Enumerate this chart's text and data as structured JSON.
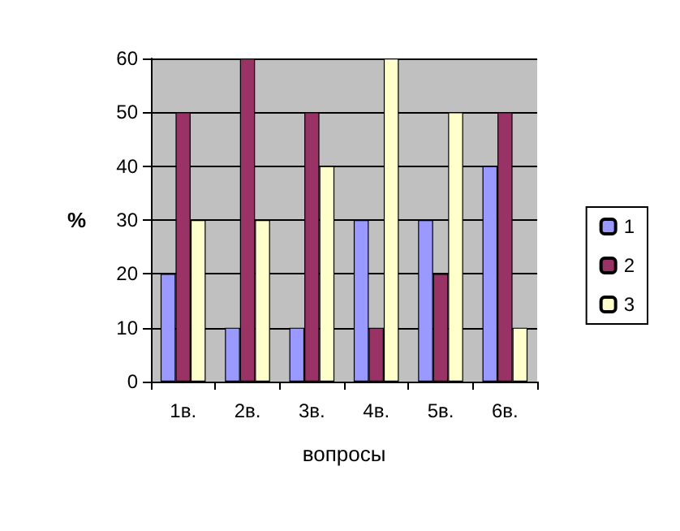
{
  "chart_data": {
    "type": "bar",
    "xlabel": "вопросы",
    "ylabel": "%",
    "categories": [
      "1в.",
      "2в.",
      "3в.",
      "4в.",
      "5в.",
      "6в."
    ],
    "series": [
      {
        "name": "1",
        "color": "#9999ff",
        "values": [
          20,
          10,
          10,
          30,
          30,
          40
        ]
      },
      {
        "name": "2",
        "color": "#993366",
        "values": [
          50,
          60,
          50,
          10,
          20,
          50
        ]
      },
      {
        "name": "3",
        "color": "#ffffcc",
        "values": [
          30,
          30,
          40,
          60,
          50,
          10
        ]
      }
    ],
    "ylim": [
      0,
      60
    ],
    "yticks": [
      0,
      10,
      20,
      30,
      40,
      50,
      60
    ],
    "grid": "y",
    "legend": "right"
  }
}
